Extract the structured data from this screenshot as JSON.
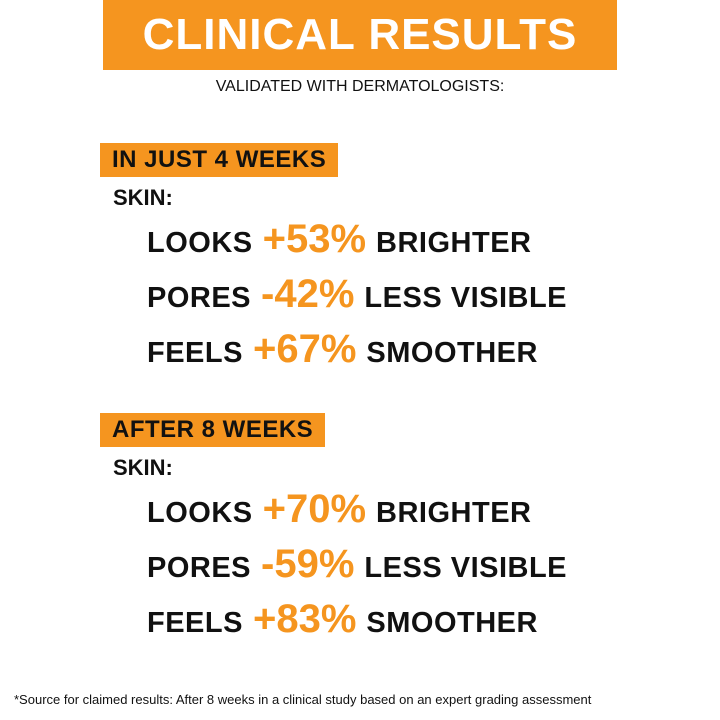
{
  "header": {
    "title": "CLINICAL RESULTS",
    "subtitle": "VALIDATED WITH DERMATOLOGISTS:"
  },
  "sections": [
    {
      "heading": "IN JUST 4 WEEKS",
      "subject": "SKIN:",
      "rows": [
        {
          "label": "LOOKS",
          "value": "+53%",
          "effect": "BRIGHTER"
        },
        {
          "label": "PORES",
          "value": "-42%",
          "effect": "LESS VISIBLE"
        },
        {
          "label": "FEELS",
          "value": "+67%",
          "effect": "SMOOTHER"
        }
      ]
    },
    {
      "heading": "AFTER 8 WEEKS",
      "subject": "SKIN:",
      "rows": [
        {
          "label": "LOOKS",
          "value": "+70%",
          "effect": "BRIGHTER"
        },
        {
          "label": "PORES",
          "value": "-59%",
          "effect": "LESS VISIBLE"
        },
        {
          "label": "FEELS",
          "value": "+83%",
          "effect": "SMOOTHER"
        }
      ]
    }
  ],
  "footnote": "*Source for claimed results: After 8 weeks in a clinical study based on an expert grading assessment"
}
